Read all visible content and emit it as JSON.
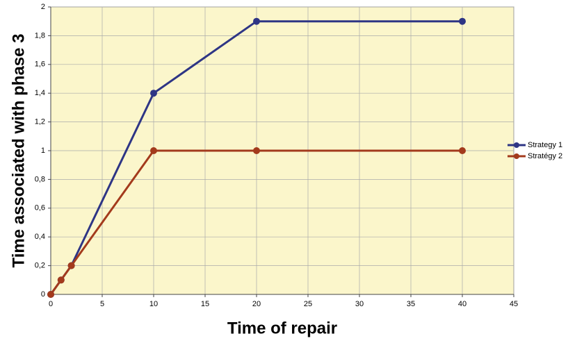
{
  "chart_data": {
    "type": "line",
    "x_label": "Time of repair",
    "y_label": "Time associated with phase 3",
    "x": [
      0,
      1,
      2,
      10,
      20,
      40
    ],
    "series": [
      {
        "name": "Strategy 1",
        "color": "#2e3585",
        "values": [
          0,
          0.1,
          0.2,
          1.4,
          1.9,
          1.9
        ]
      },
      {
        "name": "Stratégy 2",
        "color": "#a33a1c",
        "values": [
          0,
          0.1,
          0.2,
          1,
          1,
          1
        ]
      }
    ],
    "xlim": [
      0,
      45
    ],
    "xticks": [
      0,
      5,
      10,
      15,
      20,
      25,
      30,
      35,
      40,
      45
    ],
    "ylim": [
      0,
      2
    ],
    "yticks": [
      0,
      {
        "value": 0.2,
        "label": "0,2"
      },
      {
        "value": 0.4,
        "label": "0,4"
      },
      {
        "value": 0.6,
        "label": "0,6"
      },
      {
        "value": 0.8,
        "label": "0,8"
      },
      1,
      {
        "value": 1.2,
        "label": "1,2"
      },
      {
        "value": 1.4,
        "label": "1,4"
      },
      {
        "value": 1.6,
        "label": "1,6"
      },
      {
        "value": 1.8,
        "label": "1,8"
      },
      2
    ],
    "grid": true,
    "background": "#fbf6cb",
    "legend": "right"
  }
}
